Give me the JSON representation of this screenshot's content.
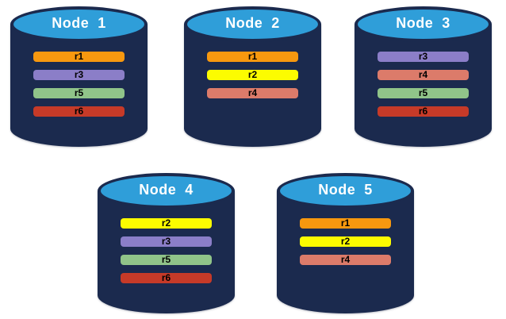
{
  "diagram": {
    "background": "#FFFFFF"
  },
  "colors": {
    "cylinder_body": "#1B2A4E",
    "cylinder_top": "#2F9ED9",
    "node_label_text": "#FFFFFF",
    "replica_label_text": "#000000",
    "replica": {
      "r1": "#F7980F",
      "r2": "#FCFC00",
      "r3": "#8B7EC8",
      "r4": "#DC7B6A",
      "r5": "#90C489",
      "r6": "#C63A28"
    }
  },
  "nodes": [
    {
      "label": "Node  1",
      "replicas": [
        "r1",
        "r3",
        "r5",
        "r6"
      ]
    },
    {
      "label": "Node  2",
      "replicas": [
        "r1",
        "r2",
        "r4"
      ]
    },
    {
      "label": "Node  3",
      "replicas": [
        "r3",
        "r4",
        "r5",
        "r6"
      ]
    },
    {
      "label": "Node  4",
      "replicas": [
        "r2",
        "r3",
        "r5",
        "r6"
      ]
    },
    {
      "label": "Node  5",
      "replicas": [
        "r1",
        "r2",
        "r4"
      ]
    }
  ]
}
